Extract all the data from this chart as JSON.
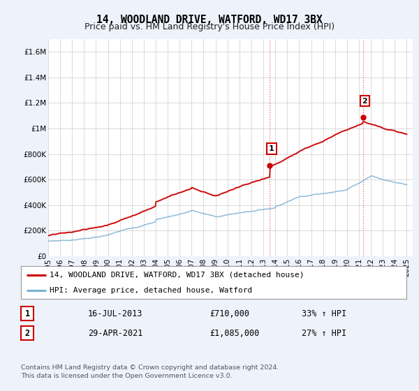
{
  "title": "14, WOODLAND DRIVE, WATFORD, WD17 3BX",
  "subtitle": "Price paid vs. HM Land Registry's House Price Index (HPI)",
  "ylabel_ticks": [
    "£0",
    "£200K",
    "£400K",
    "£600K",
    "£800K",
    "£1M",
    "£1.2M",
    "£1.4M",
    "£1.6M"
  ],
  "ytick_values": [
    0,
    200000,
    400000,
    600000,
    800000,
    1000000,
    1200000,
    1400000,
    1600000
  ],
  "ylim": [
    0,
    1700000
  ],
  "xlim_start": 1995.0,
  "xlim_end": 2025.5,
  "x_ticks": [
    1995,
    1996,
    1997,
    1998,
    1999,
    2000,
    2001,
    2002,
    2003,
    2004,
    2005,
    2006,
    2007,
    2008,
    2009,
    2010,
    2011,
    2012,
    2013,
    2014,
    2015,
    2016,
    2017,
    2018,
    2019,
    2020,
    2021,
    2022,
    2023,
    2024,
    2025
  ],
  "grid_color": "#cccccc",
  "background_color": "#eef2fb",
  "plot_bg_color": "#ffffff",
  "red_line_color": "#cc0000",
  "blue_line_color": "#7ab0d4",
  "vline1_x": 2013.54,
  "vline2_x": 2021.33,
  "marker1_x": 2013.54,
  "marker1_y": 710000,
  "marker2_x": 2021.33,
  "marker2_y": 1085000,
  "legend_line1": "14, WOODLAND DRIVE, WATFORD, WD17 3BX (detached house)",
  "legend_line2": "HPI: Average price, detached house, Watford",
  "table_row1": [
    "1",
    "16-JUL-2013",
    "£710,000",
    "33% ↑ HPI"
  ],
  "table_row2": [
    "2",
    "29-APR-2021",
    "£1,085,000",
    "27% ↑ HPI"
  ],
  "footer": "Contains HM Land Registry data © Crown copyright and database right 2024.\nThis data is licensed under the Open Government Licence v3.0.",
  "title_fontsize": 10.5,
  "subtitle_fontsize": 9,
  "tick_fontsize": 7.5,
  "legend_fontsize": 8,
  "table_fontsize": 8.5,
  "footer_fontsize": 6.8
}
